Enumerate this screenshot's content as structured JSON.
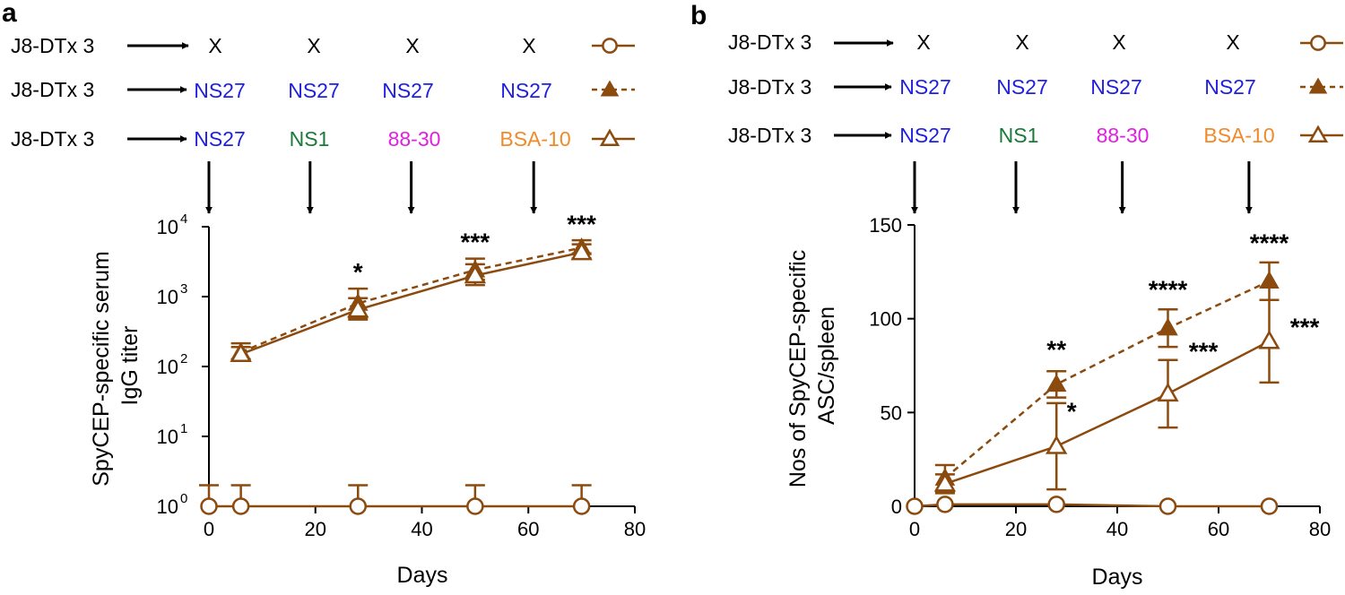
{
  "colors": {
    "series": "#8b4a0e",
    "black": "#000000",
    "ns27": "#1f1fe0",
    "ns1": "#1a7a3a",
    "p88": "#e020e0",
    "bsa": "#f08a2a"
  },
  "panels": [
    {
      "letter": "a",
      "schedule": {
        "rows": [
          {
            "prefix": "J8-DTx 3",
            "items": [
              {
                "label": "X",
                "color_key": "black"
              },
              {
                "label": "X",
                "color_key": "black"
              },
              {
                "label": "X",
                "color_key": "black"
              },
              {
                "label": "X",
                "color_key": "black"
              }
            ],
            "marker": "open-circle",
            "line": "solid"
          },
          {
            "prefix": "J8-DTx 3",
            "items": [
              {
                "label": "NS27",
                "color_key": "ns27"
              },
              {
                "label": "NS27",
                "color_key": "ns27"
              },
              {
                "label": "NS27",
                "color_key": "ns27"
              },
              {
                "label": "NS27",
                "color_key": "ns27"
              }
            ],
            "marker": "filled-triangle",
            "line": "dashed"
          },
          {
            "prefix": "J8-DTx 3",
            "items": [
              {
                "label": "NS27",
                "color_key": "ns27"
              },
              {
                "label": "NS1",
                "color_key": "ns1"
              },
              {
                "label": "88-30",
                "color_key": "p88"
              },
              {
                "label": "BSA-10",
                "color_key": "bsa"
              }
            ],
            "marker": "open-triangle",
            "line": "solid"
          }
        ],
        "arrow_days": [
          0,
          19,
          38,
          61
        ]
      }
    },
    {
      "letter": "b",
      "schedule": {
        "rows": [
          {
            "prefix": "J8-DTx 3",
            "items": [
              {
                "label": "X",
                "color_key": "black"
              },
              {
                "label": "X",
                "color_key": "black"
              },
              {
                "label": "X",
                "color_key": "black"
              },
              {
                "label": "X",
                "color_key": "black"
              }
            ],
            "marker": "open-circle",
            "line": "solid"
          },
          {
            "prefix": "J8-DTx 3",
            "items": [
              {
                "label": "NS27",
                "color_key": "ns27"
              },
              {
                "label": "NS27",
                "color_key": "ns27"
              },
              {
                "label": "NS27",
                "color_key": "ns27"
              },
              {
                "label": "NS27",
                "color_key": "ns27"
              }
            ],
            "marker": "filled-triangle",
            "line": "dashed"
          },
          {
            "prefix": "J8-DTx 3",
            "items": [
              {
                "label": "NS27",
                "color_key": "ns27"
              },
              {
                "label": "NS1",
                "color_key": "ns1"
              },
              {
                "label": "88-30",
                "color_key": "p88"
              },
              {
                "label": "BSA-10",
                "color_key": "bsa"
              }
            ],
            "marker": "open-triangle",
            "line": "solid"
          }
        ],
        "arrow_days": [
          0,
          20,
          41,
          66
        ]
      }
    }
  ],
  "chart_data": [
    {
      "type": "line",
      "scale": "log",
      "title": "",
      "xlabel": "Days",
      "ylabel_lines": [
        "SpyCEP-specific serum",
        "IgG titer"
      ],
      "xlim": [
        0,
        80
      ],
      "ylim": [
        1,
        10000
      ],
      "xticks": [
        0,
        20,
        40,
        60,
        80
      ],
      "yticks": [
        {
          "value": 1,
          "base": "10",
          "exp": "0"
        },
        {
          "value": 10,
          "base": "10",
          "exp": "1"
        },
        {
          "value": 100,
          "base": "10",
          "exp": "2"
        },
        {
          "value": 1000,
          "base": "10",
          "exp": "3"
        },
        {
          "value": 10000,
          "base": "10",
          "exp": "4"
        }
      ],
      "series": [
        {
          "name": "J8-DTx 3 → X",
          "marker": "open-circle",
          "line": "solid",
          "points": [
            {
              "x": 0,
              "y": 1,
              "err": 1
            },
            {
              "x": 6,
              "y": 1,
              "err": 1
            },
            {
              "x": 28,
              "y": 1,
              "err": 1
            },
            {
              "x": 50,
              "y": 1,
              "err": 1
            },
            {
              "x": 70,
              "y": 1,
              "err": 1
            }
          ]
        },
        {
          "name": "J8-DTx 3 → NS27 ×4",
          "marker": "filled-triangle",
          "line": "dashed",
          "points": [
            {
              "x": 6,
              "y": 160,
              "err": 55
            },
            {
              "x": 28,
              "y": 800,
              "err": 500
            },
            {
              "x": 50,
              "y": 2400,
              "err": 1100
            },
            {
              "x": 70,
              "y": 5000,
              "err": 1400
            }
          ]
        },
        {
          "name": "J8-DTx 3 → NS27, NS1, 88-30, BSA-10",
          "marker": "open-triangle",
          "line": "solid",
          "points": [
            {
              "x": 6,
              "y": 150,
              "err": 40
            },
            {
              "x": 28,
              "y": 650,
              "err": 300
            },
            {
              "x": 50,
              "y": 2000,
              "err": 900
            },
            {
              "x": 70,
              "y": 4300,
              "err": 1300
            }
          ]
        }
      ],
      "annotations": [
        {
          "x": 28,
          "y": 1700,
          "text": "*"
        },
        {
          "x": 50,
          "y": 4600,
          "text": "***"
        },
        {
          "x": 70,
          "y": 8200,
          "text": "***"
        }
      ]
    },
    {
      "type": "line",
      "scale": "linear",
      "title": "",
      "xlabel": "Days",
      "ylabel_lines": [
        "Nos of SpyCEP-specific",
        "ASC/spleen"
      ],
      "xlim": [
        0,
        80
      ],
      "ylim": [
        0,
        150
      ],
      "xticks": [
        0,
        20,
        40,
        60,
        80
      ],
      "yticks": [
        {
          "value": 0,
          "label": "0"
        },
        {
          "value": 50,
          "label": "50"
        },
        {
          "value": 100,
          "label": "100"
        },
        {
          "value": 150,
          "label": "150"
        }
      ],
      "series": [
        {
          "name": "J8-DTx 3 → X",
          "marker": "open-circle",
          "line": "solid",
          "points": [
            {
              "x": 0,
              "y": 0,
              "err": 0
            },
            {
              "x": 6,
              "y": 1,
              "err": 0
            },
            {
              "x": 28,
              "y": 1,
              "err": 0
            },
            {
              "x": 50,
              "y": 0,
              "err": 0
            },
            {
              "x": 70,
              "y": 0,
              "err": 0
            }
          ]
        },
        {
          "name": "J8-DTx 3 → NS27 ×4",
          "marker": "filled-triangle",
          "line": "dashed",
          "points": [
            {
              "x": 6,
              "y": 15,
              "err": 7
            },
            {
              "x": 28,
              "y": 65,
              "err": 7
            },
            {
              "x": 50,
              "y": 95,
              "err": 10
            },
            {
              "x": 70,
              "y": 120,
              "err": 10
            }
          ]
        },
        {
          "name": "J8-DTx 3 → NS27, NS1, 88-30, BSA-10",
          "marker": "open-triangle",
          "line": "solid",
          "points": [
            {
              "x": 6,
              "y": 12,
              "err": 5
            },
            {
              "x": 28,
              "y": 32,
              "err": 23
            },
            {
              "x": 50,
              "y": 60,
              "err": 18
            },
            {
              "x": 70,
              "y": 88,
              "err": 22
            }
          ]
        }
      ],
      "annotations": [
        {
          "x": 28,
          "y": 79,
          "text": "**"
        },
        {
          "x": 31,
          "y": 46,
          "text": "*"
        },
        {
          "x": 50,
          "y": 111,
          "text": "****"
        },
        {
          "x": 57,
          "y": 78,
          "text": "***"
        },
        {
          "x": 70,
          "y": 136,
          "text": "****"
        },
        {
          "x": 77,
          "y": 91,
          "text": "***"
        }
      ]
    }
  ]
}
